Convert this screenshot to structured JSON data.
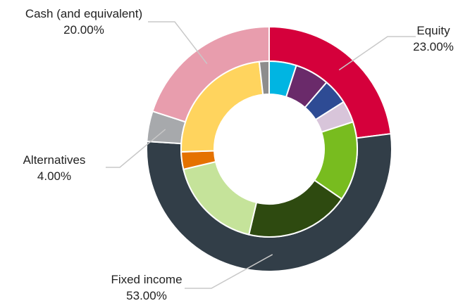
{
  "chart_data": {
    "type": "donut",
    "outer_ring": [
      {
        "label": "Equity",
        "value_text": "23.00%",
        "value": 23.0,
        "color": "#d5003b"
      },
      {
        "label": "Fixed income",
        "value_text": "53.00%",
        "value": 53.0,
        "color": "#323e48"
      },
      {
        "label": "Alternatives",
        "value_text": "4.00%",
        "value": 4.0,
        "color": "#a7a9ac"
      },
      {
        "label": "Cash (and equivalent)",
        "value_text": "20.00%",
        "value": 20.0,
        "color": "#e89dad"
      }
    ],
    "inner_ring": [
      {
        "value": 5.0,
        "color": "#00b5e2"
      },
      {
        "value": 6.3,
        "color": "#6a2a6a"
      },
      {
        "value": 4.7,
        "color": "#2e4b94"
      },
      {
        "value": 4.0,
        "color": "#d8c5da"
      },
      {
        "value": 14.6,
        "color": "#78bc1f"
      },
      {
        "value": 19.1,
        "color": "#2e4a10"
      },
      {
        "value": 17.6,
        "color": "#c5e39a"
      },
      {
        "value": 3.2,
        "color": "#e57200"
      },
      {
        "value": 23.7,
        "color": "#ffd45e"
      },
      {
        "value": 1.8,
        "color": "#8d8d8d"
      }
    ],
    "start_angle_deg": 0,
    "direction": "clockwise"
  }
}
